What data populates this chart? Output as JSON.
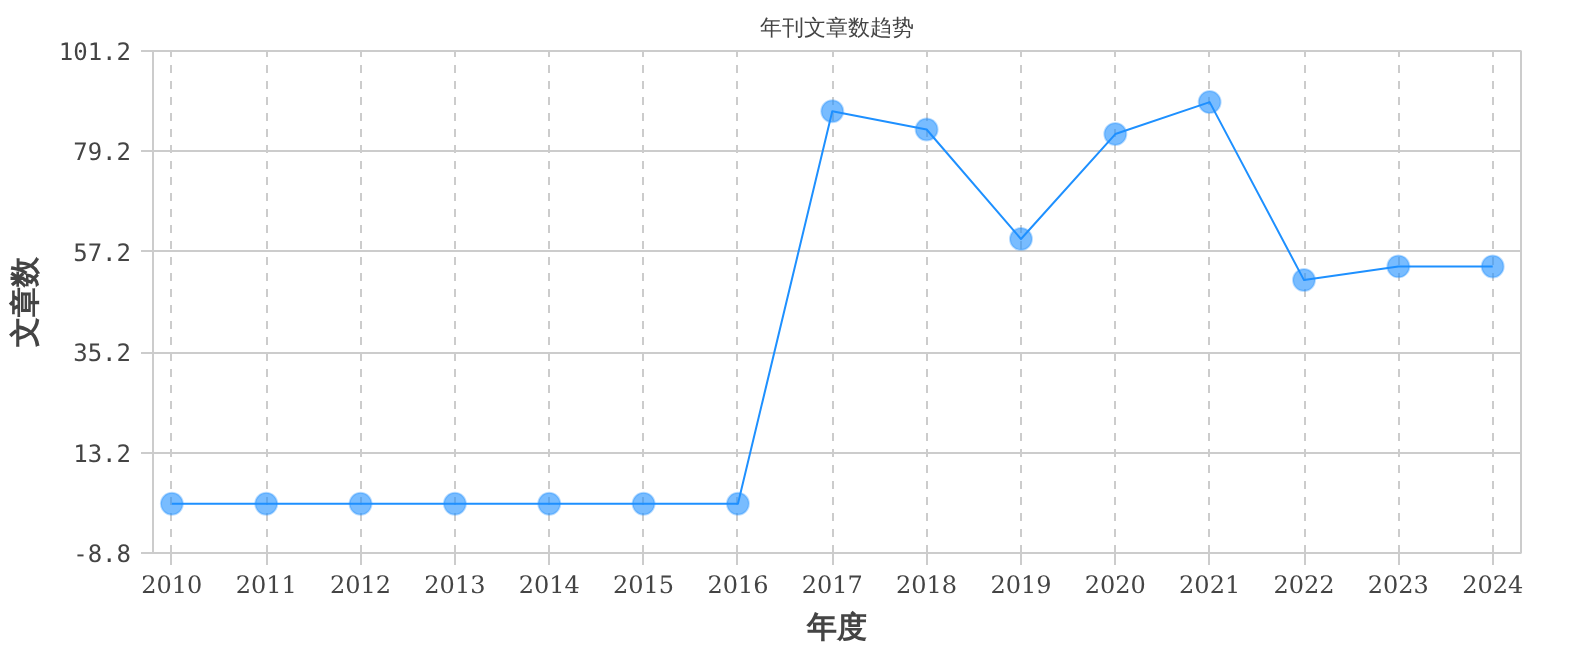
{
  "chart_data": {
    "type": "line",
    "title": "年刊文章数趋势",
    "xlabel": "年度",
    "ylabel": "文章数",
    "x": [
      2010,
      2011,
      2012,
      2013,
      2014,
      2015,
      2016,
      2017,
      2018,
      2019,
      2020,
      2021,
      2022,
      2023,
      2024
    ],
    "series": [
      {
        "color": "#1e90ff",
        "values": [
          2,
          2,
          2,
          2,
          2,
          2,
          2,
          88,
          84,
          60,
          83,
          90,
          51,
          54,
          54
        ]
      }
    ],
    "xlim": [
      2009.8,
      2024.3
    ],
    "xticks": [
      2010,
      2011,
      2012,
      2013,
      2014,
      2015,
      2016,
      2017,
      2018,
      2019,
      2020,
      2021,
      2022,
      2023,
      2024
    ],
    "ylim": [
      -8.8,
      101.2
    ],
    "yticks": [
      -8.8,
      13.2,
      35.2,
      57.2,
      79.2,
      101.2
    ],
    "grid": true,
    "marker": "circle",
    "line_style": "solid"
  }
}
